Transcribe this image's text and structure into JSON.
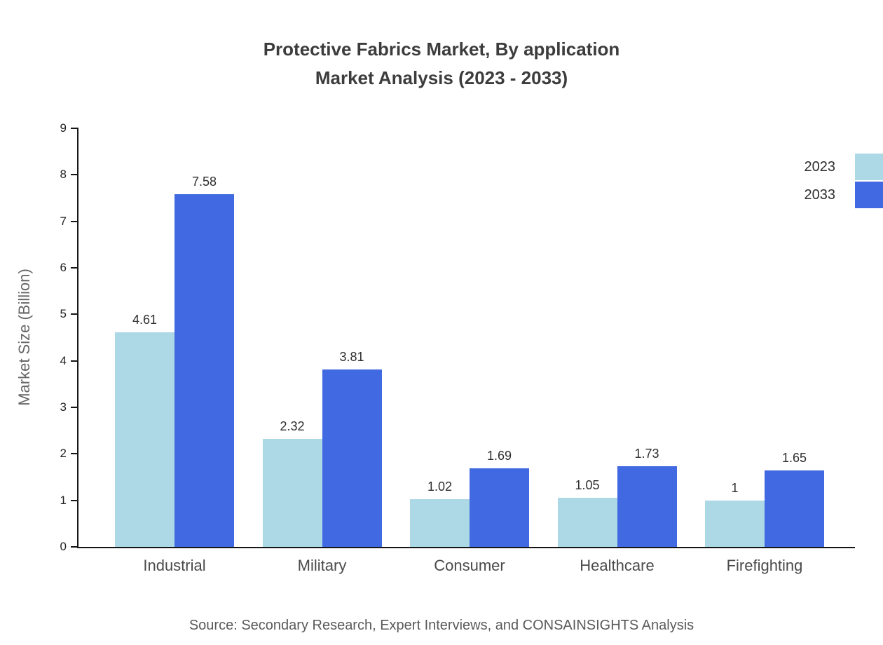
{
  "title": {
    "line1": "Protective Fabrics Market, By application",
    "line2": "Market Analysis (2023 - 2033)"
  },
  "y_axis_title": "Market Size (Billion)",
  "source_note": "Source: Secondary Research, Expert Interviews, and CONSAINSIGHTS Analysis",
  "colors": {
    "series_2023": "#ADD8E6",
    "series_2033": "#4169E1",
    "axis": "#151515"
  },
  "legend": [
    {
      "label": "2023",
      "color": "#ADD8E6"
    },
    {
      "label": "2033",
      "color": "#4169E1"
    }
  ],
  "chart_data": {
    "type": "bar",
    "categories": [
      "Industrial",
      "Military",
      "Consumer",
      "Healthcare",
      "Firefighting"
    ],
    "series": [
      {
        "name": "2023",
        "color": "#ADD8E6",
        "values": [
          4.61,
          2.32,
          1.02,
          1.05,
          1
        ]
      },
      {
        "name": "2033",
        "color": "#4169E1",
        "values": [
          7.58,
          3.81,
          1.69,
          1.73,
          1.65
        ]
      }
    ],
    "title": "Protective Fabrics Market, By application Market Analysis (2023 - 2033)",
    "xlabel": "",
    "ylabel": "Market Size (Billion)",
    "ylim": [
      0,
      9
    ],
    "ytick_step": 1,
    "grid": false,
    "legend_position": "top-right"
  }
}
